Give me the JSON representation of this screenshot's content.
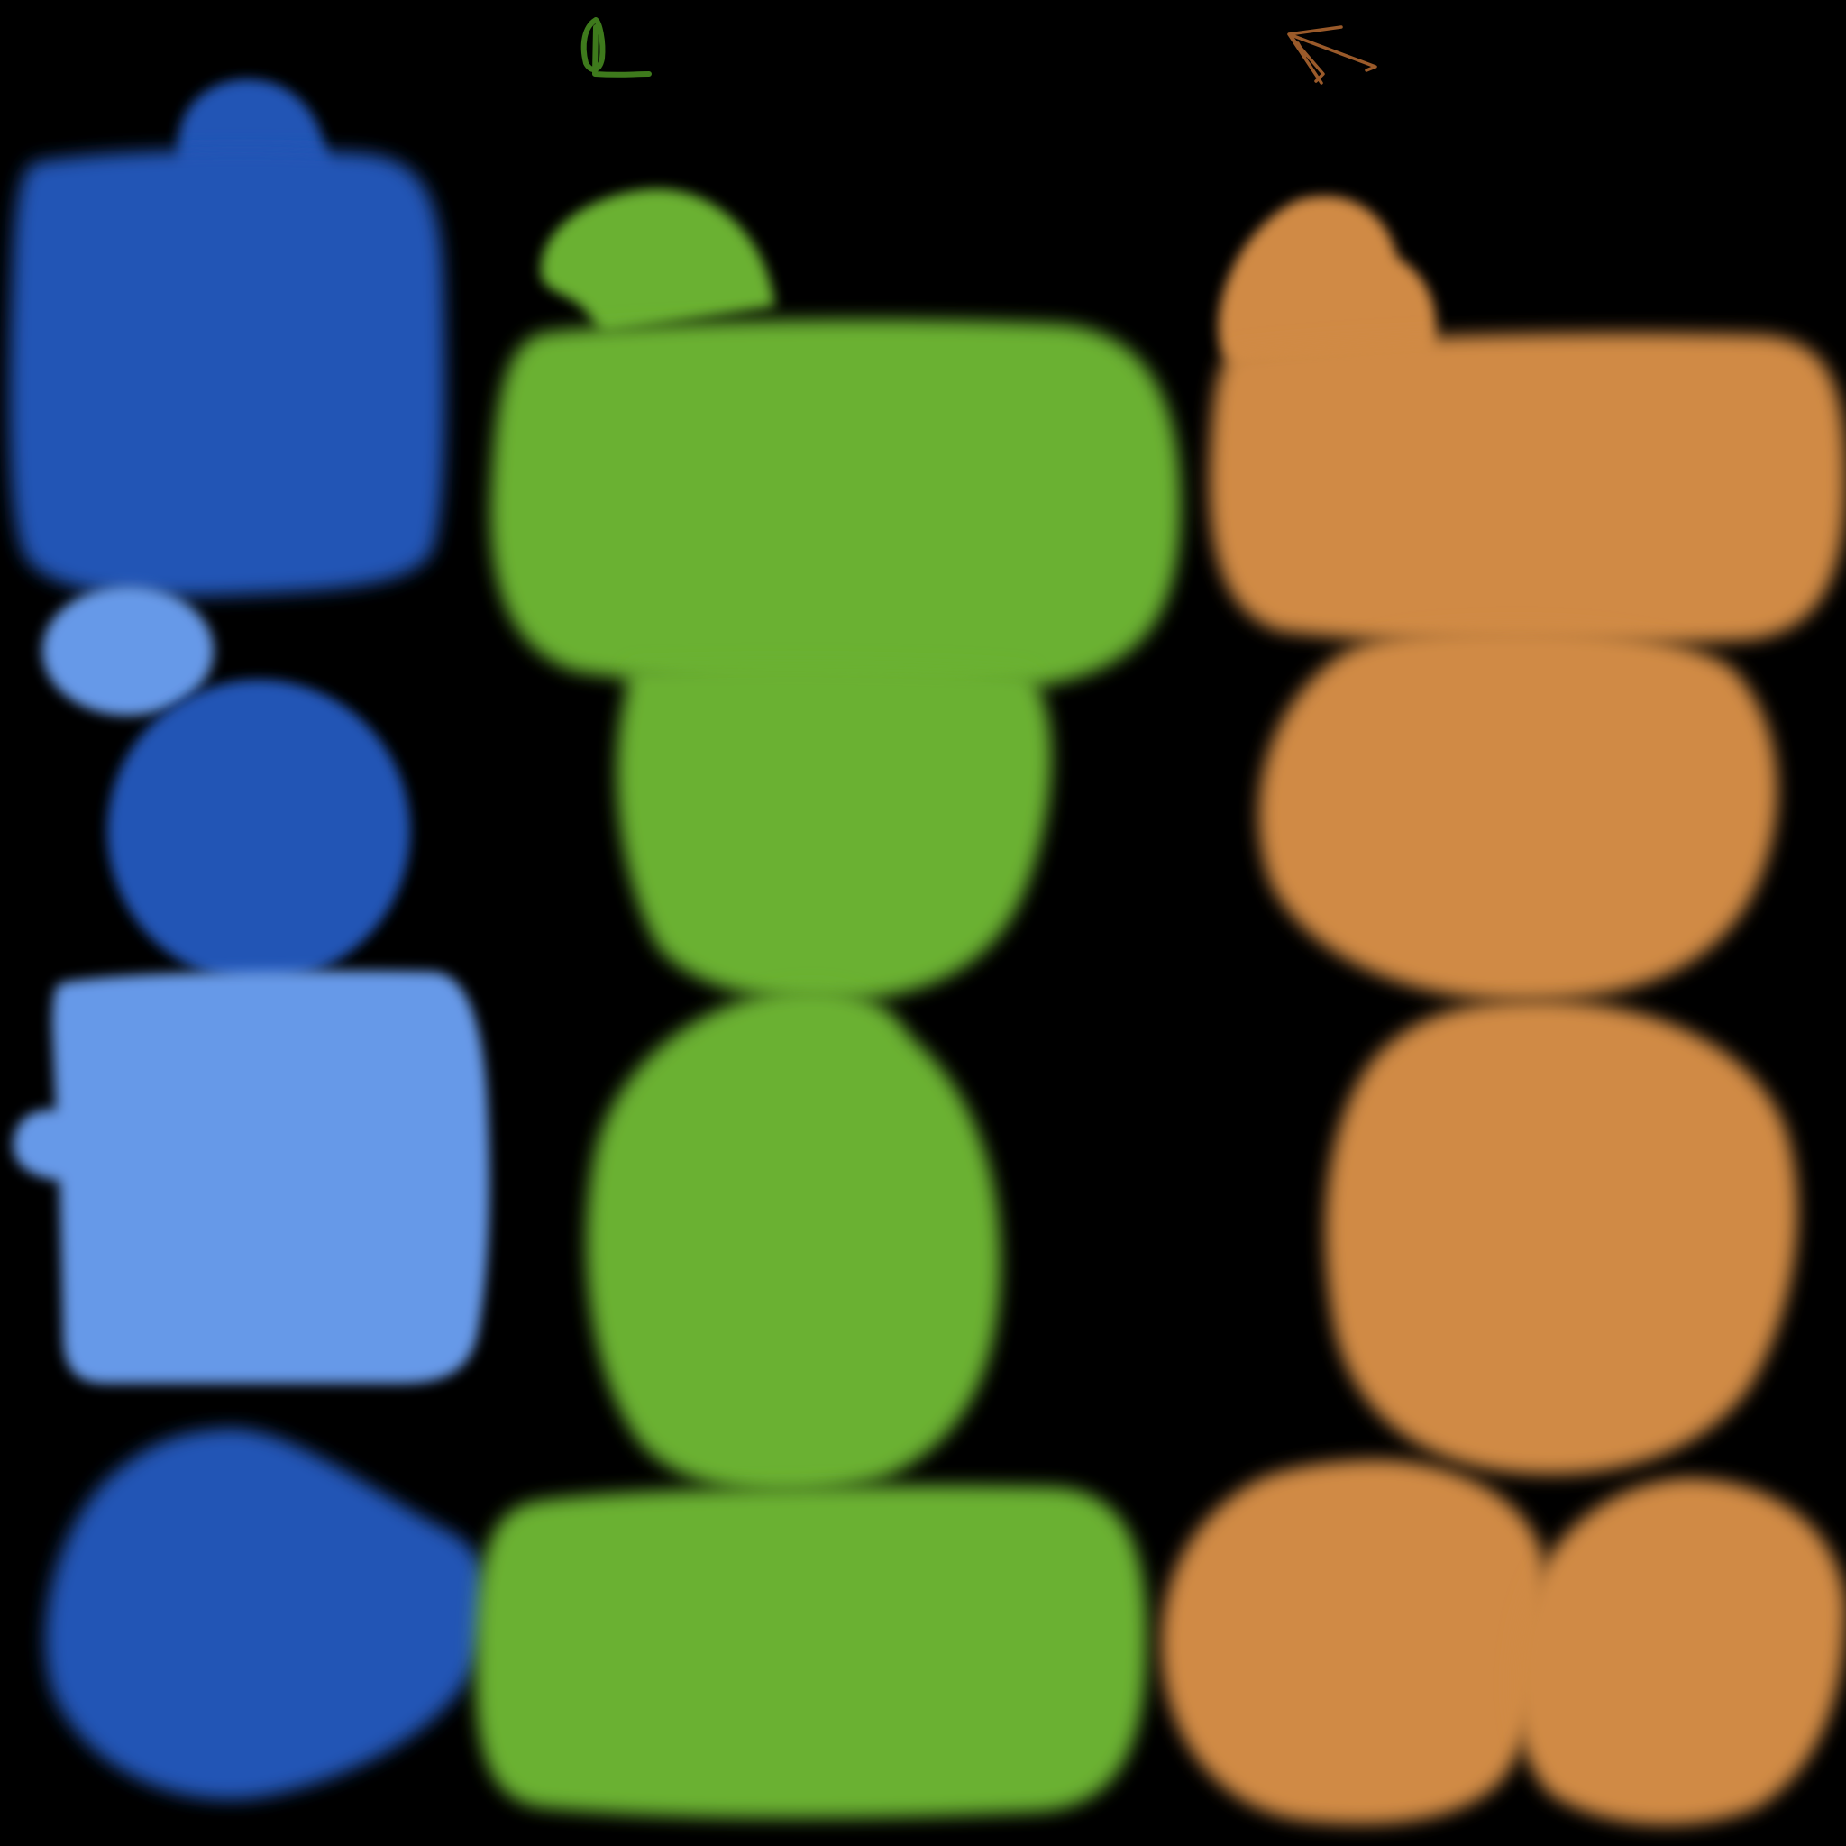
{
  "canvas": {
    "background": "#000000"
  },
  "palette": {
    "blue_dark": "#2255B5",
    "blue_light": "#6699E8",
    "green": "#6BB130",
    "orange": "#D08A45",
    "green_mark": "#3E7A1C",
    "orange_mark": "#9A5A2A"
  },
  "columns": [
    {
      "name": "blue-column",
      "blob_count": 6
    },
    {
      "name": "green-column",
      "blob_count": 5
    },
    {
      "name": "orange-column",
      "blob_count": 6
    }
  ],
  "marks": [
    {
      "name": "green-l-stroke",
      "color_key": "green_mark"
    },
    {
      "name": "orange-arrow-stroke",
      "color_key": "orange_mark"
    }
  ]
}
